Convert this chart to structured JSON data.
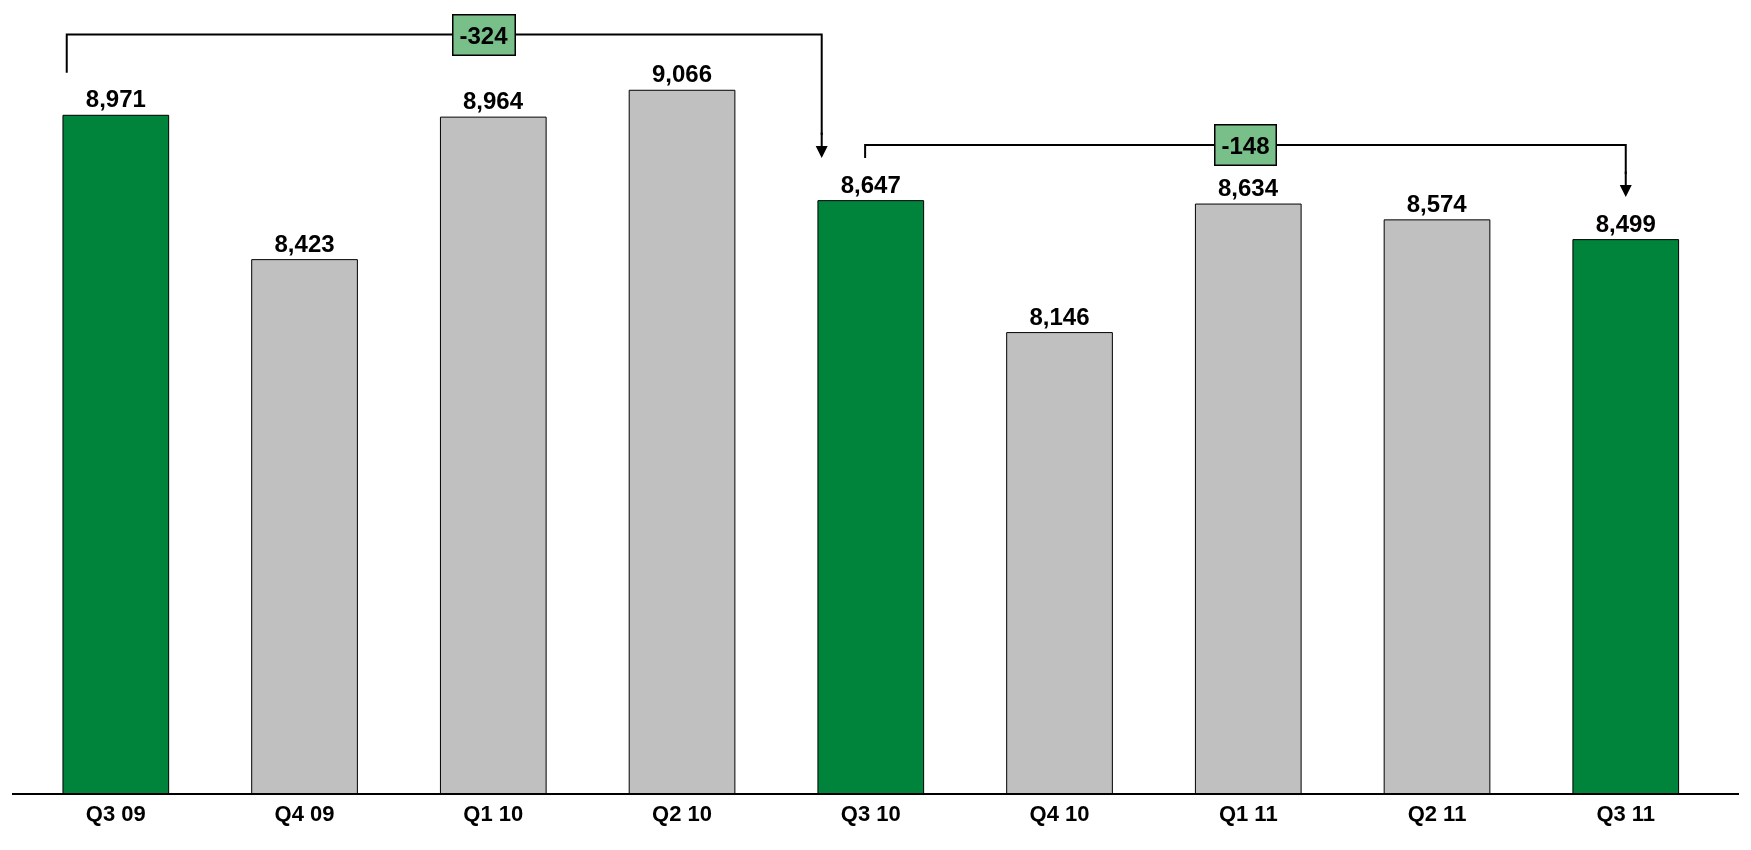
{
  "chart_data": {
    "type": "bar",
    "categories": [
      "Q3 09",
      "Q4 09",
      "Q1 10",
      "Q2 10",
      "Q3 10",
      "Q4 10",
      "Q1 11",
      "Q2 11",
      "Q3 11"
    ],
    "values": [
      8971,
      8423,
      8964,
      9066,
      8647,
      8146,
      8634,
      8574,
      8499
    ],
    "colors": [
      "#00833a",
      "#c0c0c0",
      "#c0c0c0",
      "#c0c0c0",
      "#00833a",
      "#c0c0c0",
      "#c0c0c0",
      "#c0c0c0",
      "#00833a"
    ],
    "value_labels": [
      "8,971",
      "8,423",
      "8,964",
      "9,066",
      "8,647",
      "8,146",
      "8,634",
      "8,574",
      "8,499"
    ],
    "tick_labels": "x",
    "annotations": [
      "-324",
      "-148"
    ]
  }
}
